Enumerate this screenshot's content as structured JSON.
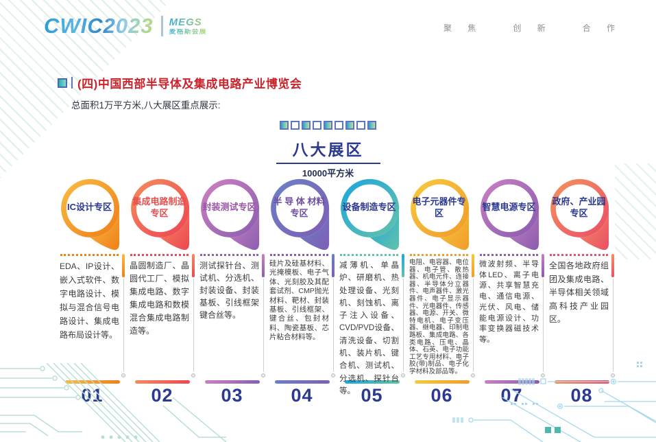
{
  "header": {
    "logo": {
      "brand": "CWIC",
      "year": "2023",
      "org": "MEGS",
      "org_cn": "麦格斯会展"
    },
    "slogan": [
      "聚 焦",
      "创 新",
      "合 作"
    ]
  },
  "intro": {
    "title": "(四)中国西部半导体及集成电路产业博览会",
    "subtitle": "总面积1万平方米,八大展区重点展示:"
  },
  "section": {
    "heading": "八大展区",
    "subheading": "10000平方米",
    "squares": {
      "count": 9,
      "filled_indices": [
        0,
        2,
        4,
        6,
        8
      ]
    }
  },
  "zones": [
    {
      "num": "01",
      "title": "IC设计专区",
      "title_color": "#2b3990",
      "ring": [
        "#f9bb41",
        "#ef7f1a"
      ],
      "desc": "EDA、IP设计、嵌入式软件、数字电路设计、模拟与混合信号电路设计、集成电路布局设计等。"
    },
    {
      "num": "02",
      "title": "集成电路制造专区",
      "title_color": "#e6504d",
      "ring": [
        "#f58a5d",
        "#ec4752"
      ],
      "desc": "晶圆制造厂、晶圆代工厂、模拟集成电路、数字集成电路和数模混合集成电路制造等。"
    },
    {
      "num": "03",
      "title": "封装测试专区",
      "title_color": "#9b55a8",
      "ring": [
        "#cd7fc0",
        "#8a5fb0"
      ],
      "desc": "测试探针台、测试机、分选机、封装设备、封装基板、引线框架键合丝等。"
    },
    {
      "num": "04",
      "title": "半 导 体 材料专区",
      "title_color": "#6e4fa3",
      "ring": [
        "#6b7fc7",
        "#7e5fb5"
      ],
      "desc": "硅片及硅基材料、光掩模板、电子气体、光刻胶及其配套试剂、CMP抛光材料、靶材、封装基板、引线框架、键合丝、包封材料、陶瓷基板、芯片粘合材料等。"
    },
    {
      "num": "05",
      "title": "设备制造专区",
      "title_color": "#2b3990",
      "ring": [
        "#1fa6dc",
        "#62c2a9"
      ],
      "desc": "减薄机、单晶炉、研磨机、热处理设备、光刻机、刻蚀机、离子注入设备、CVD/PVD设备、清洗设备、切割机、装片机、键合机、测试机、分选机、探针台等。"
    },
    {
      "num": "06",
      "title": "电子元器件专区",
      "title_color": "#2b3990",
      "ring": [
        "#f7c93e",
        "#f09c2a"
      ],
      "desc": "电阻、电容器、电位器、电子管、散热器、机电元件、连接器、半导体分立器件、电声器件、激光器件、电子显示器件、光电器件、传感器、电源、开关、微特电机、电子变压器、继电器、印制电路板、集成电路、各类电路、压电、晶体、石英、电子功能工艺专用材料、电子胶(带)制品、电子化学材料及部品等。"
    },
    {
      "num": "07",
      "title": "智慧电源专区",
      "title_color": "#2b3990",
      "ring": [
        "#c67fc2",
        "#8a5cae"
      ],
      "desc": "微波射频、半导体LED、离子电源、共享智慧充电、通信电源、光伏、风电、储能电源设计、功率变换器磁技术等。"
    },
    {
      "num": "08",
      "title": "政府、产业园专区",
      "title_color": "#2b3990",
      "ring": [
        "#f49160",
        "#ea4f66"
      ],
      "desc": "全国各地政府组团及集成电路、半导体相关领域高科技产业园区。"
    }
  ],
  "colors": {
    "navy": "#2b3990",
    "title_red": "#c9242b",
    "slogan_gray": "#8f8f8f",
    "decor_green": "#b9dfd2",
    "decor_blue": "#a5d8ee",
    "decor_teal_square": "#4cb8ae"
  }
}
